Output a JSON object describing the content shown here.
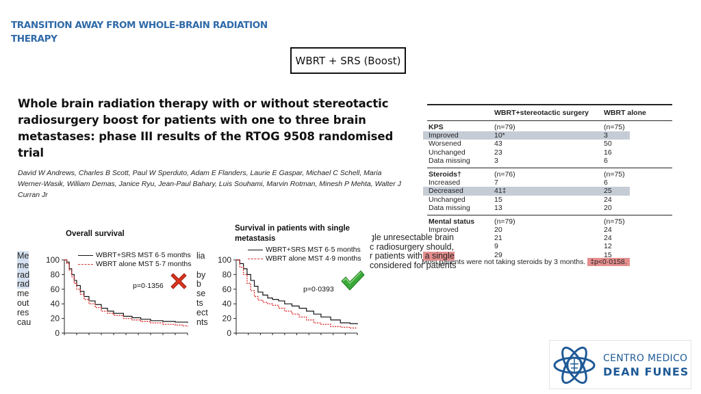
{
  "slide_title": "TRANSITION AWAY FROM WHOLE-BRAIN RADIATION THERAPY",
  "boost_label": "WBRT + SRS (Boost)",
  "paper": {
    "title": "Whole brain radiation therapy with or without stereotactic radiosurgery boost for patients with one to three brain metastases: phase III results of the RTOG 9508 randomised trial",
    "authors": "David W Andrews, Charles B Scott, Paul W Sperduto, Adam E Flanders, Laurie E Gaspar, Michael C Schell, Maria Werner-Wasik, William Demas, Janice Ryu, Jean-Paul Bahary, Luis Souhami, Marvin Rotman, Minesh P Mehta, Walter J Curran Jr"
  },
  "table": {
    "headers": [
      "",
      "WBRT+stereotactic surgery",
      "WBRT alone"
    ],
    "sections": [
      {
        "label": "KPS",
        "n1": "(n=79)",
        "n2": "(n=75)",
        "rows": [
          {
            "label": "Improved",
            "v1": "10*",
            "v2": "3",
            "highlight": true
          },
          {
            "label": "Worsened",
            "v1": "43",
            "v2": "50",
            "highlight": false
          },
          {
            "label": "Unchanged",
            "v1": "23",
            "v2": "16",
            "highlight": false
          },
          {
            "label": "Data missing",
            "v1": "3",
            "v2": "6",
            "highlight": false
          }
        ]
      },
      {
        "label": "Steroids†",
        "n1": "(n=76)",
        "n2": "(n=75)",
        "rows": [
          {
            "label": "Increased",
            "v1": "7",
            "v2": "6",
            "highlight": false
          },
          {
            "label": "Decreased",
            "v1": "41‡",
            "v2": "25",
            "highlight": true
          },
          {
            "label": "Unchanged",
            "v1": "15",
            "v2": "24",
            "highlight": false
          },
          {
            "label": "Data missing",
            "v1": "13",
            "v2": "20",
            "highlight": false
          }
        ]
      },
      {
        "label": "Mental status",
        "n1": "(n=79)",
        "n2": "(n=75)",
        "rows": [
          {
            "label": "Improved",
            "v1": "20",
            "v2": "24",
            "highlight": false
          },
          {
            "label": "",
            "v1": "21",
            "v2": "24",
            "highlight": false
          },
          {
            "label": "",
            "v1": "9",
            "v2": "12",
            "highlight": false
          },
          {
            "label": "",
            "v1": "29",
            "v2": "15",
            "highlight": false
          }
        ]
      }
    ],
    "footnote_main": "Most patients were not taking steroids by 3 months.",
    "footnote_highlight": "‡p<0·0158."
  },
  "abstract_left_fragments": [
    {
      "left": "Me",
      "right": "lia"
    },
    {
      "left": "me",
      "right": ""
    },
    {
      "left": "rad",
      "right": "by"
    },
    {
      "left": "rad",
      "right": "b"
    },
    {
      "left": "me",
      "right": "se"
    },
    {
      "left": "out",
      "right": "ts"
    },
    {
      "left": "res",
      "right": "ect"
    },
    {
      "left": "cau",
      "right": "nts"
    }
  ],
  "abstract_right_lines": [
    "gle  unresectable  brain",
    "c  radiosurgery  should,",
    "r patients with a single",
    " considered for patients"
  ],
  "charts": [
    {
      "title": "Overall survival",
      "legend": [
        "WBRT+SRS MST 6·5 months",
        "WBRT alone MST 5·7 months"
      ],
      "pvalue": "p=0·1356"
    },
    {
      "title": "Survival in patients with single metastasis",
      "legend": [
        "WBRT+SRS MST 6·5 months",
        "WBRT alone MST 4·9 months"
      ],
      "pvalue": "p=0·0393"
    }
  ],
  "chart_data": [
    {
      "type": "line",
      "title": "Overall survival",
      "ylim": [
        0,
        100
      ],
      "yticks": [
        "0",
        "20",
        "40",
        "60",
        "80",
        "100"
      ],
      "xlim": [
        0,
        100
      ],
      "series": [
        {
          "name": "WBRT+SRS MST 6·5 months",
          "color": "#111111",
          "x": [
            0,
            2,
            4,
            6,
            8,
            10,
            13,
            16,
            20,
            25,
            30,
            35,
            40,
            48,
            55,
            62,
            70,
            80,
            90,
            96,
            100
          ],
          "y": [
            100,
            97,
            88,
            80,
            72,
            65,
            57,
            50,
            44,
            39,
            34,
            30,
            27,
            23,
            21,
            19,
            17,
            16,
            15,
            15,
            14
          ]
        },
        {
          "name": "WBRT alone MST 5·7 months",
          "color": "#dd3333",
          "x": [
            0,
            2,
            4,
            6,
            8,
            10,
            13,
            16,
            20,
            25,
            30,
            35,
            40,
            48,
            55,
            62,
            70,
            80,
            90,
            96,
            100
          ],
          "y": [
            100,
            95,
            86,
            77,
            68,
            60,
            53,
            46,
            40,
            35,
            30,
            27,
            24,
            20,
            18,
            16,
            14,
            12,
            11,
            10,
            9
          ]
        }
      ]
    },
    {
      "type": "line",
      "title": "Survival in patients with single metastasis",
      "ylim": [
        0,
        100
      ],
      "yticks": [
        "0",
        "20",
        "40",
        "60",
        "80",
        "100"
      ],
      "xlim": [
        0,
        100
      ],
      "series": [
        {
          "name": "WBRT+SRS MST 6·5 months",
          "color": "#111111",
          "x": [
            0,
            3,
            6,
            9,
            12,
            15,
            18,
            22,
            26,
            30,
            35,
            40,
            46,
            52,
            58,
            64,
            70,
            78,
            86,
            94,
            100
          ],
          "y": [
            100,
            95,
            88,
            80,
            72,
            64,
            56,
            52,
            48,
            46,
            44,
            40,
            37,
            34,
            30,
            26,
            22,
            18,
            14,
            13,
            12
          ]
        },
        {
          "name": "WBRT alone MST 4·9 months",
          "color": "#dd3333",
          "x": [
            0,
            3,
            6,
            9,
            12,
            15,
            18,
            22,
            26,
            30,
            35,
            40,
            46,
            52,
            58,
            64,
            70,
            78,
            86,
            94,
            100
          ],
          "y": [
            100,
            90,
            80,
            68,
            58,
            50,
            45,
            42,
            40,
            38,
            34,
            30,
            26,
            22,
            18,
            14,
            12,
            9,
            8,
            7,
            7
          ]
        }
      ]
    }
  ],
  "logo": {
    "line1": "CENTRO MEDICO",
    "line2": "DEAN FUNES",
    "icon": "atom-brain-icon"
  },
  "icons": {
    "fail": "x-mark-icon",
    "success": "check-mark-icon"
  }
}
